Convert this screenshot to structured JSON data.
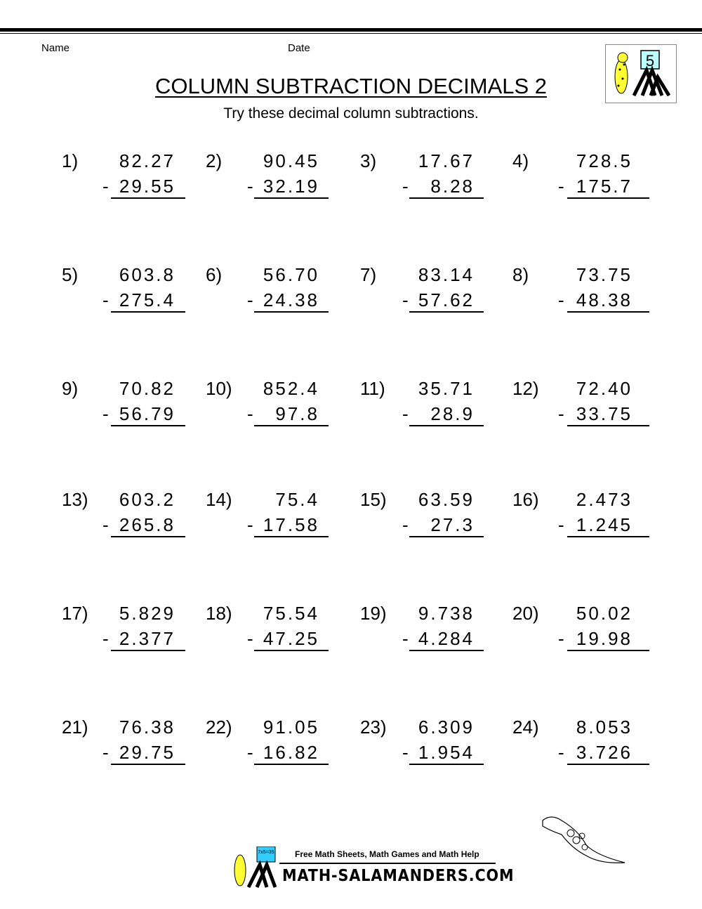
{
  "header": {
    "name_label": "Name",
    "date_label": "Date",
    "title": "COLUMN SUBTRACTION DECIMALS 2",
    "subtitle": "Try these decimal column subtractions.",
    "logo_grade": "5"
  },
  "problems": [
    {
      "label": "1)",
      "top": "82.27",
      "bottom": "29.55"
    },
    {
      "label": "2)",
      "top": "90.45",
      "bottom": "32.19"
    },
    {
      "label": "3)",
      "top": "17.67",
      "bottom": "8.28"
    },
    {
      "label": "4)",
      "top": "728.5",
      "bottom": "175.7"
    },
    {
      "label": "5)",
      "top": "603.8",
      "bottom": "275.4"
    },
    {
      "label": "6)",
      "top": "56.70",
      "bottom": "24.38"
    },
    {
      "label": "7)",
      "top": "83.14",
      "bottom": "57.62"
    },
    {
      "label": "8)",
      "top": "73.75",
      "bottom": "48.38"
    },
    {
      "label": "9)",
      "top": "70.82",
      "bottom": "56.79"
    },
    {
      "label": "10)",
      "top": "852.4",
      "bottom": "97.8"
    },
    {
      "label": "11)",
      "top": "35.71",
      "bottom": "28.9"
    },
    {
      "label": "12)",
      "top": "72.40",
      "bottom": "33.75"
    },
    {
      "label": "13)",
      "top": "603.2",
      "bottom": "265.8"
    },
    {
      "label": "14)",
      "top": "75.4",
      "bottom": "17.58"
    },
    {
      "label": "15)",
      "top": "63.59",
      "bottom": "27.3"
    },
    {
      "label": "16)",
      "top": "2.473",
      "bottom": "1.245"
    },
    {
      "label": "17)",
      "top": "5.829",
      "bottom": "2.377"
    },
    {
      "label": "18)",
      "top": "75.54",
      "bottom": "47.25"
    },
    {
      "label": "19)",
      "top": "9.738",
      "bottom": "4.284"
    },
    {
      "label": "20)",
      "top": "50.02",
      "bottom": "19.98"
    },
    {
      "label": "21)",
      "top": "76.38",
      "bottom": "29.75"
    },
    {
      "label": "22)",
      "top": "91.05",
      "bottom": "16.82"
    },
    {
      "label": "23)",
      "top": "6.309",
      "bottom": "1.954"
    },
    {
      "label": "24)",
      "top": "8.053",
      "bottom": "3.726"
    }
  ],
  "minus_sign": "-",
  "footer": {
    "tagline": "Free Math Sheets, Math Games and Math Help",
    "brand": "MATH-SALAMANDERS.COM",
    "board_text": "7x5=35"
  }
}
